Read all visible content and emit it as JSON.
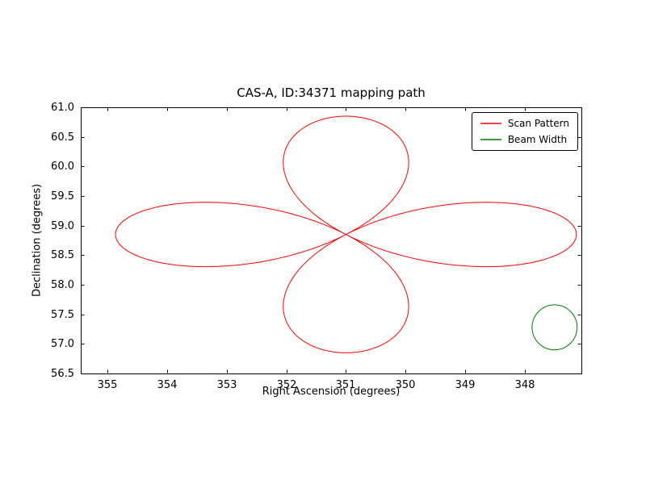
{
  "figure": {
    "title": "CAS-A, ID:34371 mapping path"
  },
  "chart_data": {
    "type": "line",
    "title": "CAS-A, ID:34371 mapping path",
    "xlabel": "Right Ascension (degrees)",
    "ylabel": "Declination (degrees)",
    "xlim": [
      355.45,
      347.05
    ],
    "ylim": [
      56.5,
      61.0
    ],
    "x_axis_inverted": true,
    "grid": false,
    "x_ticks": {
      "values": [
        355,
        354,
        353,
        352,
        351,
        350,
        349,
        348
      ],
      "labels": [
        "355",
        "354",
        "353",
        "352",
        "351",
        "350",
        "349",
        "348"
      ]
    },
    "y_ticks": {
      "values": [
        56.5,
        57.0,
        57.5,
        58.0,
        58.5,
        59.0,
        59.5,
        60.0,
        60.5,
        61.0
      ],
      "labels": [
        "56.5",
        "57.0",
        "57.5",
        "58.0",
        "58.5",
        "59.0",
        "59.5",
        "60.0",
        "60.5",
        "61.0"
      ]
    },
    "legend": {
      "position": "upper right",
      "entries": [
        {
          "label": "Scan Pattern",
          "color": "#ff0000"
        },
        {
          "label": "Beam Width",
          "color": "#008000"
        }
      ]
    },
    "series": [
      {
        "name": "Scan Pattern",
        "shape": "rose",
        "color": "#ff0000",
        "center_ra": 351.0,
        "center_dec": 58.85,
        "amplitude_deg": 2.0,
        "petals": 4,
        "ra_cos_dec_scaling": true
      },
      {
        "name": "Beam Width",
        "shape": "circle",
        "color": "#008000",
        "center_ra": 347.5,
        "center_dec": 57.28,
        "radius_deg": 0.38
      }
    ]
  }
}
